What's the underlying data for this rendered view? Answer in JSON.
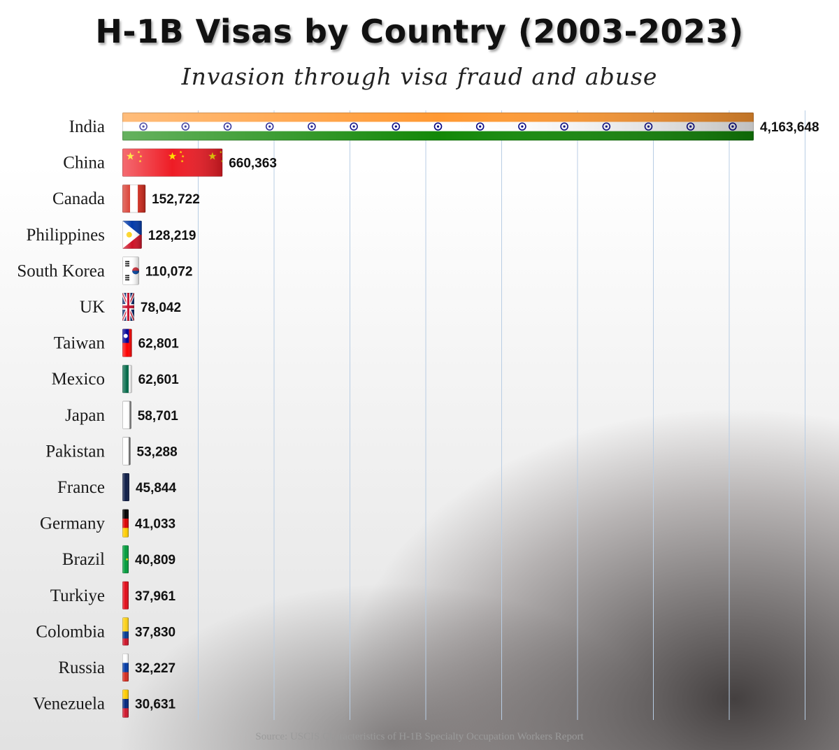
{
  "chart_data": {
    "type": "bar",
    "orientation": "horizontal",
    "title": "H-1B Visas by Country (2003-2023)",
    "subtitle": "Invasion through visa fraud and abuse",
    "categories": [
      "India",
      "China",
      "Canada",
      "Philippines",
      "South Korea",
      "UK",
      "Taiwan",
      "Mexico",
      "Japan",
      "Pakistan",
      "France",
      "Germany",
      "Brazil",
      "Turkiye",
      "Colombia",
      "Russia",
      "Venezuela"
    ],
    "values": [
      4163648,
      660363,
      152722,
      128219,
      110072,
      78042,
      62801,
      62601,
      58701,
      53288,
      45844,
      41033,
      40809,
      37961,
      37830,
      32227,
      30631
    ],
    "value_labels": [
      "4,163,648",
      "660,363",
      "152,722",
      "128,219",
      "110,072",
      "78,042",
      "62,801",
      "62,601",
      "58,701",
      "53,288",
      "45,844",
      "41,033",
      "40,809",
      "37,961",
      "37,830",
      "32,227",
      "30,631"
    ],
    "xlim": [
      0,
      4163648
    ],
    "grid": true,
    "bar_fill": "country flags",
    "source": "Source: USCIS Characteristics of H-1B Specialty Occupation Workers Report"
  },
  "flags": {
    "India": "india",
    "China": "china",
    "Canada": "canada",
    "Philippines": "philippines",
    "South Korea": "south-korea",
    "UK": "uk",
    "Taiwan": "taiwan",
    "Mexico": "mexico",
    "Japan": "japan",
    "Pakistan": "pakistan",
    "France": "france",
    "Germany": "germany",
    "Brazil": "brazil",
    "Turkiye": "turkiye",
    "Colombia": "colombia",
    "Russia": "russia",
    "Venezuela": "venezuela"
  },
  "colors": {
    "saffron": "#FF9933",
    "india_green": "#138808",
    "chakra": "#000080",
    "china_red": "#EE1C25",
    "star_yellow": "#FFDE00",
    "gridline": "#b8cde4"
  }
}
